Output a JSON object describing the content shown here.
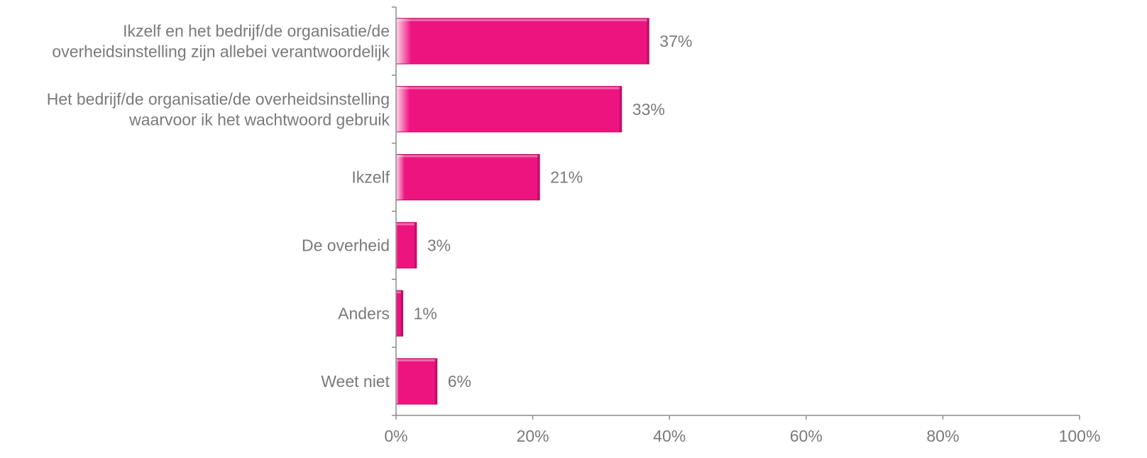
{
  "chart_data": {
    "type": "bar",
    "orientation": "horizontal",
    "categories": [
      [
        "Ikzelf en het bedrijf/de organisatie/de",
        "overheidsinstelling zijn allebei verantwoordelijk"
      ],
      [
        "Het bedrijf/de organisatie/de overheidsinstelling",
        "waarvoor ik het wachtwoord gebruik"
      ],
      [
        "Ikzelf"
      ],
      [
        "De overheid"
      ],
      [
        "Anders"
      ],
      [
        "Weet niet"
      ]
    ],
    "values": [
      37,
      33,
      21,
      3,
      1,
      6
    ],
    "value_labels": [
      "37%",
      "33%",
      "21%",
      "3%",
      "1%",
      "6%"
    ],
    "xlim": [
      0,
      100
    ],
    "x_ticks": [
      0,
      20,
      40,
      60,
      80,
      100
    ],
    "x_tick_labels": [
      "0%",
      "20%",
      "40%",
      "60%",
      "80%",
      "100%"
    ],
    "title": "",
    "xlabel": "",
    "ylabel": "",
    "grid": false,
    "legend": "none",
    "colors": {
      "bar": "#ee1480",
      "bar_highlight": "#ffd6ea",
      "bar_shadow": "#b80f63",
      "text": "#7a7a7a",
      "axis": "#8c8c8c"
    }
  }
}
